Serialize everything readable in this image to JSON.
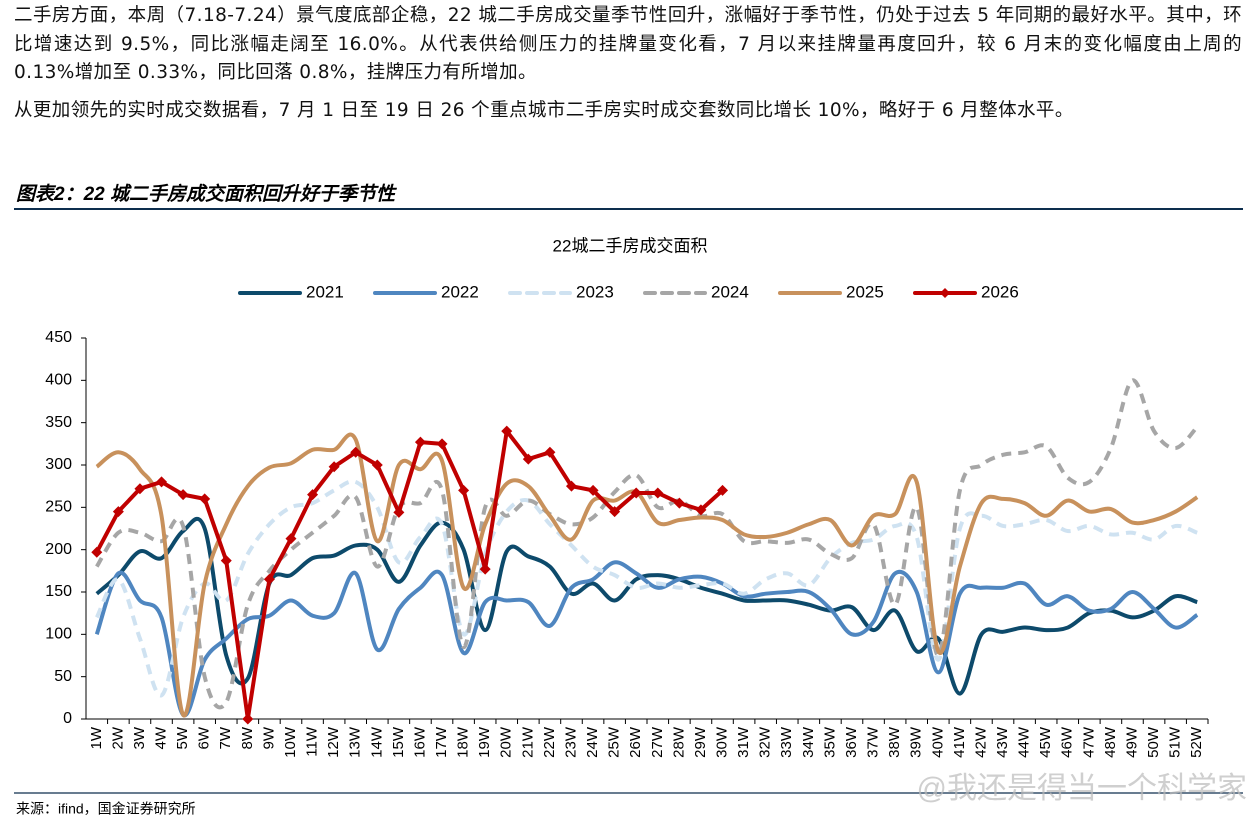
{
  "paragraphs": [
    "二手房方面，本周（7.18-7.24）景气度底部企稳，22 城二手房成交量季节性回升，涨幅好于季节性，仍处于过去 5 年同期的最好水平。其中，环比增速达到 9.5%，同比涨幅走阔至 16.0%。从代表供给侧压力的挂牌量变化看，7 月以来挂牌量再度回升，较 6 月末的变化幅度由上周的 0.13%增加至 0.33%，同比回落 0.8%，挂牌压力有所增加。",
    "从更加领先的实时成交数据看，7 月 1 日至 19 日 26 个重点城市二手房实时成交套数同比增长 10%，略好于 6 月整体水平。"
  ],
  "figure_title": "图表2：22 城二手房成交面积回升好于季节性",
  "source": "来源：ifind，国金证券研究所",
  "watermark": "@我还是得当一个科学家",
  "chart_data": {
    "type": "line",
    "title": "22城二手房成交面积",
    "categories": [
      "1W",
      "2W",
      "3W",
      "4W",
      "5W",
      "6W",
      "7W",
      "8W",
      "9W",
      "10W",
      "11W",
      "12W",
      "13W",
      "14W",
      "15W",
      "16W",
      "17W",
      "18W",
      "19W",
      "20W",
      "21W",
      "22W",
      "23W",
      "24W",
      "25W",
      "26W",
      "27W",
      "28W",
      "29W",
      "30W",
      "31W",
      "32W",
      "33W",
      "34W",
      "35W",
      "36W",
      "37W",
      "38W",
      "39W",
      "40W",
      "41W",
      "42W",
      "43W",
      "44W",
      "45W",
      "46W",
      "47W",
      "48W",
      "49W",
      "50W",
      "51W",
      "52W"
    ],
    "ylim": [
      0,
      450
    ],
    "yticks": [
      0,
      50,
      100,
      150,
      200,
      250,
      300,
      350,
      400,
      450
    ],
    "grid": false,
    "legend": "top",
    "series": [
      {
        "name": "2021",
        "color": "#0d4a6b",
        "style": "solid",
        "values": [
          148,
          170,
          198,
          190,
          222,
          225,
          75,
          48,
          160,
          170,
          190,
          193,
          205,
          200,
          162,
          205,
          232,
          200,
          105,
          198,
          192,
          180,
          148,
          160,
          140,
          165,
          170,
          165,
          155,
          148,
          140,
          140,
          140,
          135,
          128,
          132,
          105,
          128,
          80,
          95,
          30,
          100,
          103,
          108,
          105,
          108,
          125,
          128,
          120,
          128,
          145,
          138
        ]
      },
      {
        "name": "2022",
        "color": "#4f86c0",
        "style": "solid",
        "values": [
          100,
          172,
          140,
          120,
          5,
          70,
          95,
          118,
          122,
          140,
          122,
          125,
          172,
          82,
          130,
          155,
          170,
          78,
          138,
          140,
          138,
          110,
          155,
          165,
          185,
          172,
          155,
          165,
          168,
          160,
          145,
          148,
          150,
          150,
          130,
          100,
          115,
          172,
          150,
          55,
          148,
          155,
          155,
          160,
          135,
          145,
          128,
          130,
          150,
          130,
          108,
          123
        ]
      },
      {
        "name": "2023",
        "color": "#cfe2f1",
        "style": "dashed",
        "values": [
          120,
          165,
          95,
          28,
          120,
          160,
          140,
          195,
          230,
          250,
          255,
          270,
          280,
          250,
          185,
          215,
          230,
          100,
          195,
          245,
          258,
          230,
          205,
          180,
          170,
          155,
          160,
          155,
          158,
          160,
          148,
          165,
          172,
          158,
          190,
          208,
          212,
          228,
          215,
          70,
          225,
          240,
          228,
          230,
          235,
          222,
          228,
          218,
          220,
          212,
          228,
          220
        ]
      },
      {
        "name": "2024",
        "color": "#a6a6a6",
        "style": "dashed",
        "values": [
          180,
          220,
          220,
          210,
          228,
          50,
          20,
          135,
          175,
          200,
          220,
          240,
          262,
          180,
          250,
          255,
          270,
          85,
          250,
          240,
          258,
          242,
          230,
          238,
          268,
          288,
          250,
          258,
          240,
          242,
          210,
          210,
          208,
          212,
          195,
          190,
          230,
          135,
          250,
          75,
          270,
          300,
          312,
          315,
          322,
          285,
          280,
          320,
          400,
          340,
          320,
          345
        ]
      },
      {
        "name": "2025",
        "color": "#c8915c",
        "style": "solid",
        "values": [
          298,
          315,
          295,
          240,
          5,
          160,
          230,
          275,
          297,
          302,
          318,
          318,
          330,
          210,
          300,
          295,
          305,
          155,
          230,
          278,
          275,
          240,
          212,
          258,
          258,
          268,
          232,
          235,
          238,
          235,
          218,
          215,
          220,
          230,
          235,
          205,
          240,
          242,
          280,
          80,
          180,
          255,
          260,
          255,
          240,
          258,
          245,
          248,
          232,
          235,
          245,
          262
        ]
      },
      {
        "name": "2026",
        "color": "#c00000",
        "style": "solid",
        "marker": "diamond",
        "values": [
          197,
          245,
          272,
          280,
          265,
          260,
          187,
          0,
          165,
          213,
          265,
          298,
          315,
          300,
          244,
          327,
          325,
          270,
          177,
          340,
          307,
          315,
          275,
          270,
          245,
          267,
          267,
          255,
          247,
          270,
          null,
          null,
          null,
          null,
          null,
          null,
          null,
          null,
          null,
          null,
          null,
          null,
          null,
          null,
          null,
          null,
          null,
          null,
          null,
          null,
          null,
          null
        ]
      }
    ]
  }
}
